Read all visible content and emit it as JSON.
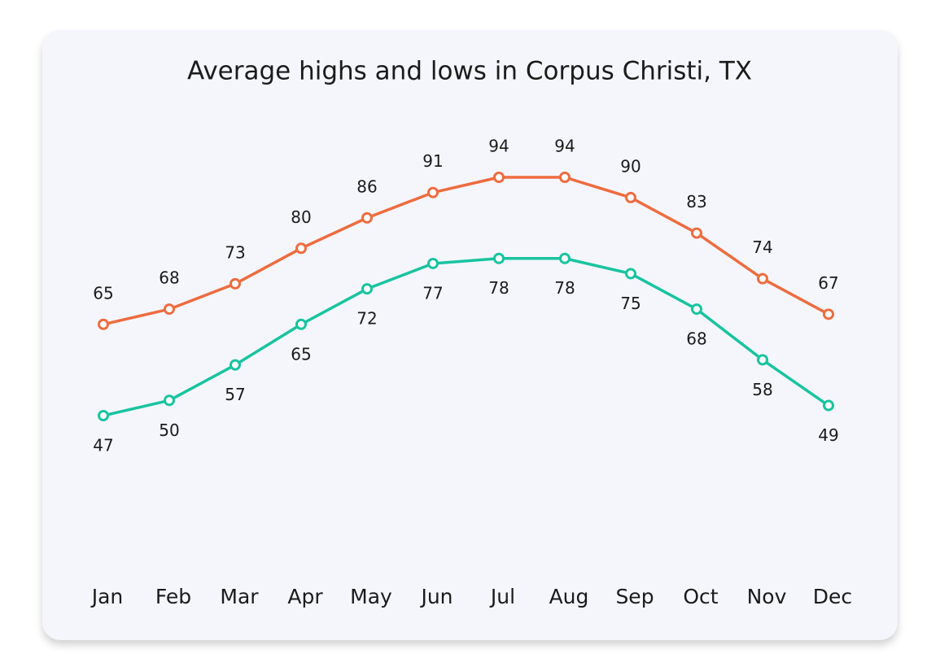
{
  "chart_data": {
    "type": "line",
    "title": "Average highs and lows in Corpus Christi, TX",
    "categories": [
      "Jan",
      "Feb",
      "Mar",
      "Apr",
      "May",
      "Jun",
      "Jul",
      "Aug",
      "Sep",
      "Oct",
      "Nov",
      "Dec"
    ],
    "series": [
      {
        "color": "#ee6c3f",
        "values": [
          65,
          68,
          73,
          80,
          86,
          91,
          94,
          94,
          90,
          83,
          74,
          67
        ]
      },
      {
        "color": "#18c4a0",
        "values": [
          47,
          50,
          57,
          65,
          72,
          77,
          78,
          78,
          75,
          68,
          58,
          49
        ]
      }
    ]
  }
}
